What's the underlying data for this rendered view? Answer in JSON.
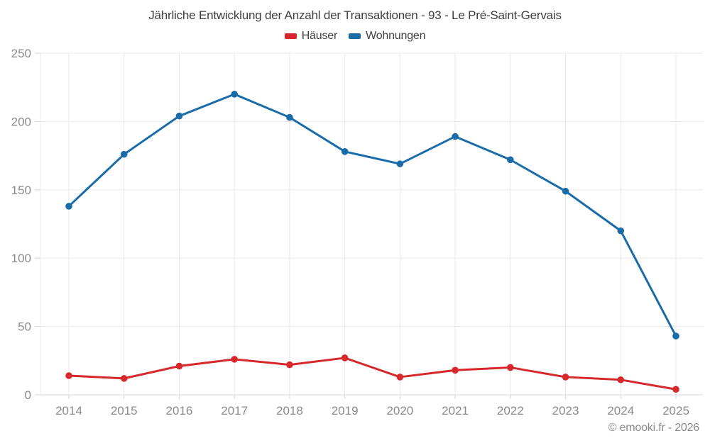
{
  "title": "Jährliche Entwicklung der Anzahl der Transaktionen - 93 - Le Pré-Saint-Gervais",
  "footer": "© emooki.fr - 2026",
  "legend": {
    "items": [
      {
        "label": "Häuser",
        "color": "#d7282c"
      },
      {
        "label": "Wohnungen",
        "color": "#1a6ca8"
      }
    ]
  },
  "colors": {
    "grid": "#e8e8e8",
    "axis": "#d6d6d6",
    "tick_label": "#8a8a8a",
    "title_text": "#3f3f3f",
    "haeuser_red": "#d7282c",
    "wohnungen_blue": "#1a6ca8"
  },
  "chart_data": {
    "type": "line",
    "title": "Jährliche Entwicklung der Anzahl der Transaktionen - 93 - Le Pré-Saint-Gervais",
    "categories": [
      "2014",
      "2015",
      "2016",
      "2017",
      "2018",
      "2019",
      "2020",
      "2021",
      "2022",
      "2023",
      "2024",
      "2025"
    ],
    "series": [
      {
        "name": "Häuser",
        "color": "#d7282c",
        "values": [
          14,
          12,
          21,
          26,
          22,
          27,
          13,
          18,
          20,
          13,
          11,
          4
        ]
      },
      {
        "name": "Wohnungen",
        "color": "#1a6ca8",
        "values": [
          138,
          176,
          204,
          220,
          203,
          178,
          169,
          189,
          172,
          149,
          120,
          43
        ]
      }
    ],
    "xlabel": "",
    "ylabel": "",
    "ylim": [
      0,
      250
    ],
    "yticks": [
      0,
      50,
      100,
      150,
      200,
      250
    ],
    "grid": true,
    "legend_position": "top",
    "markers": true
  }
}
